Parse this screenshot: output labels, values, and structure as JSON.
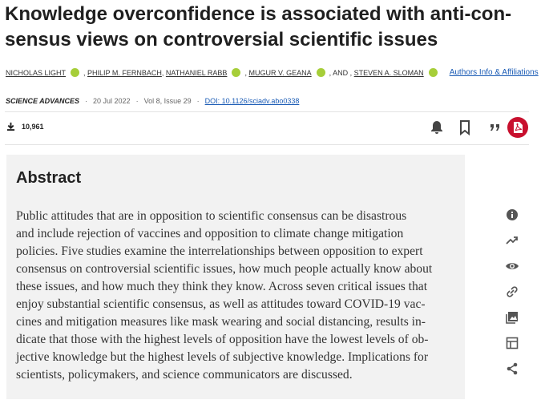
{
  "header": {
    "title_lines": [
      "Knowledge overconfidence is associated with anti-con-",
      "sensus views on controversial scientific issues"
    ],
    "authors": [
      {
        "name": "NICHOLAS LIGHT",
        "orcid": true
      },
      {
        "lead": ", ",
        "name": "PHILIP M. FERNBACH",
        "orcid": false
      },
      {
        "lead": ", ",
        "name": "NATHANIEL RABB",
        "orcid": true
      },
      {
        "lead": ", ",
        "name": "MUGUR V. GEANA",
        "orcid": true
      },
      {
        "lead": ", AND , ",
        "name": "STEVEN A. SLOMAN",
        "orcid": true
      }
    ],
    "affiliations_link": "Authors Info & Affiliations",
    "journal": "SCIENCE ADVANCES",
    "separator": "·",
    "date": "20 Jul 2022",
    "issue": "Vol 8, Issue 29",
    "doi": "DOI: 10.1126/sciadv.abo0338",
    "downloads": "10,961"
  },
  "abstract": {
    "heading": "Abstract",
    "lines": [
      "Public attitudes that are in opposition to scientific consensus can be disastrous",
      "and include rejection of vaccines and opposition to climate change mitigation",
      "policies. Five studies examine the interrelationships between opposition to expert",
      "consensus on controversial scientific issues, how much people actually know about",
      "these issues, and how much they think they know. Across seven critical issues that",
      "enjoy substantial scientific consensus, as well as attitudes toward COVID-19 vac-",
      "cines and mitigation measures like mask wearing and social distancing, results in-",
      "dicate that those with the highest levels of opposition have the lowest levels of ob-",
      "jective knowledge but the highest levels of subjective knowledge. Implications for",
      "scientists, policymakers, and science communicators are discussed."
    ]
  }
}
